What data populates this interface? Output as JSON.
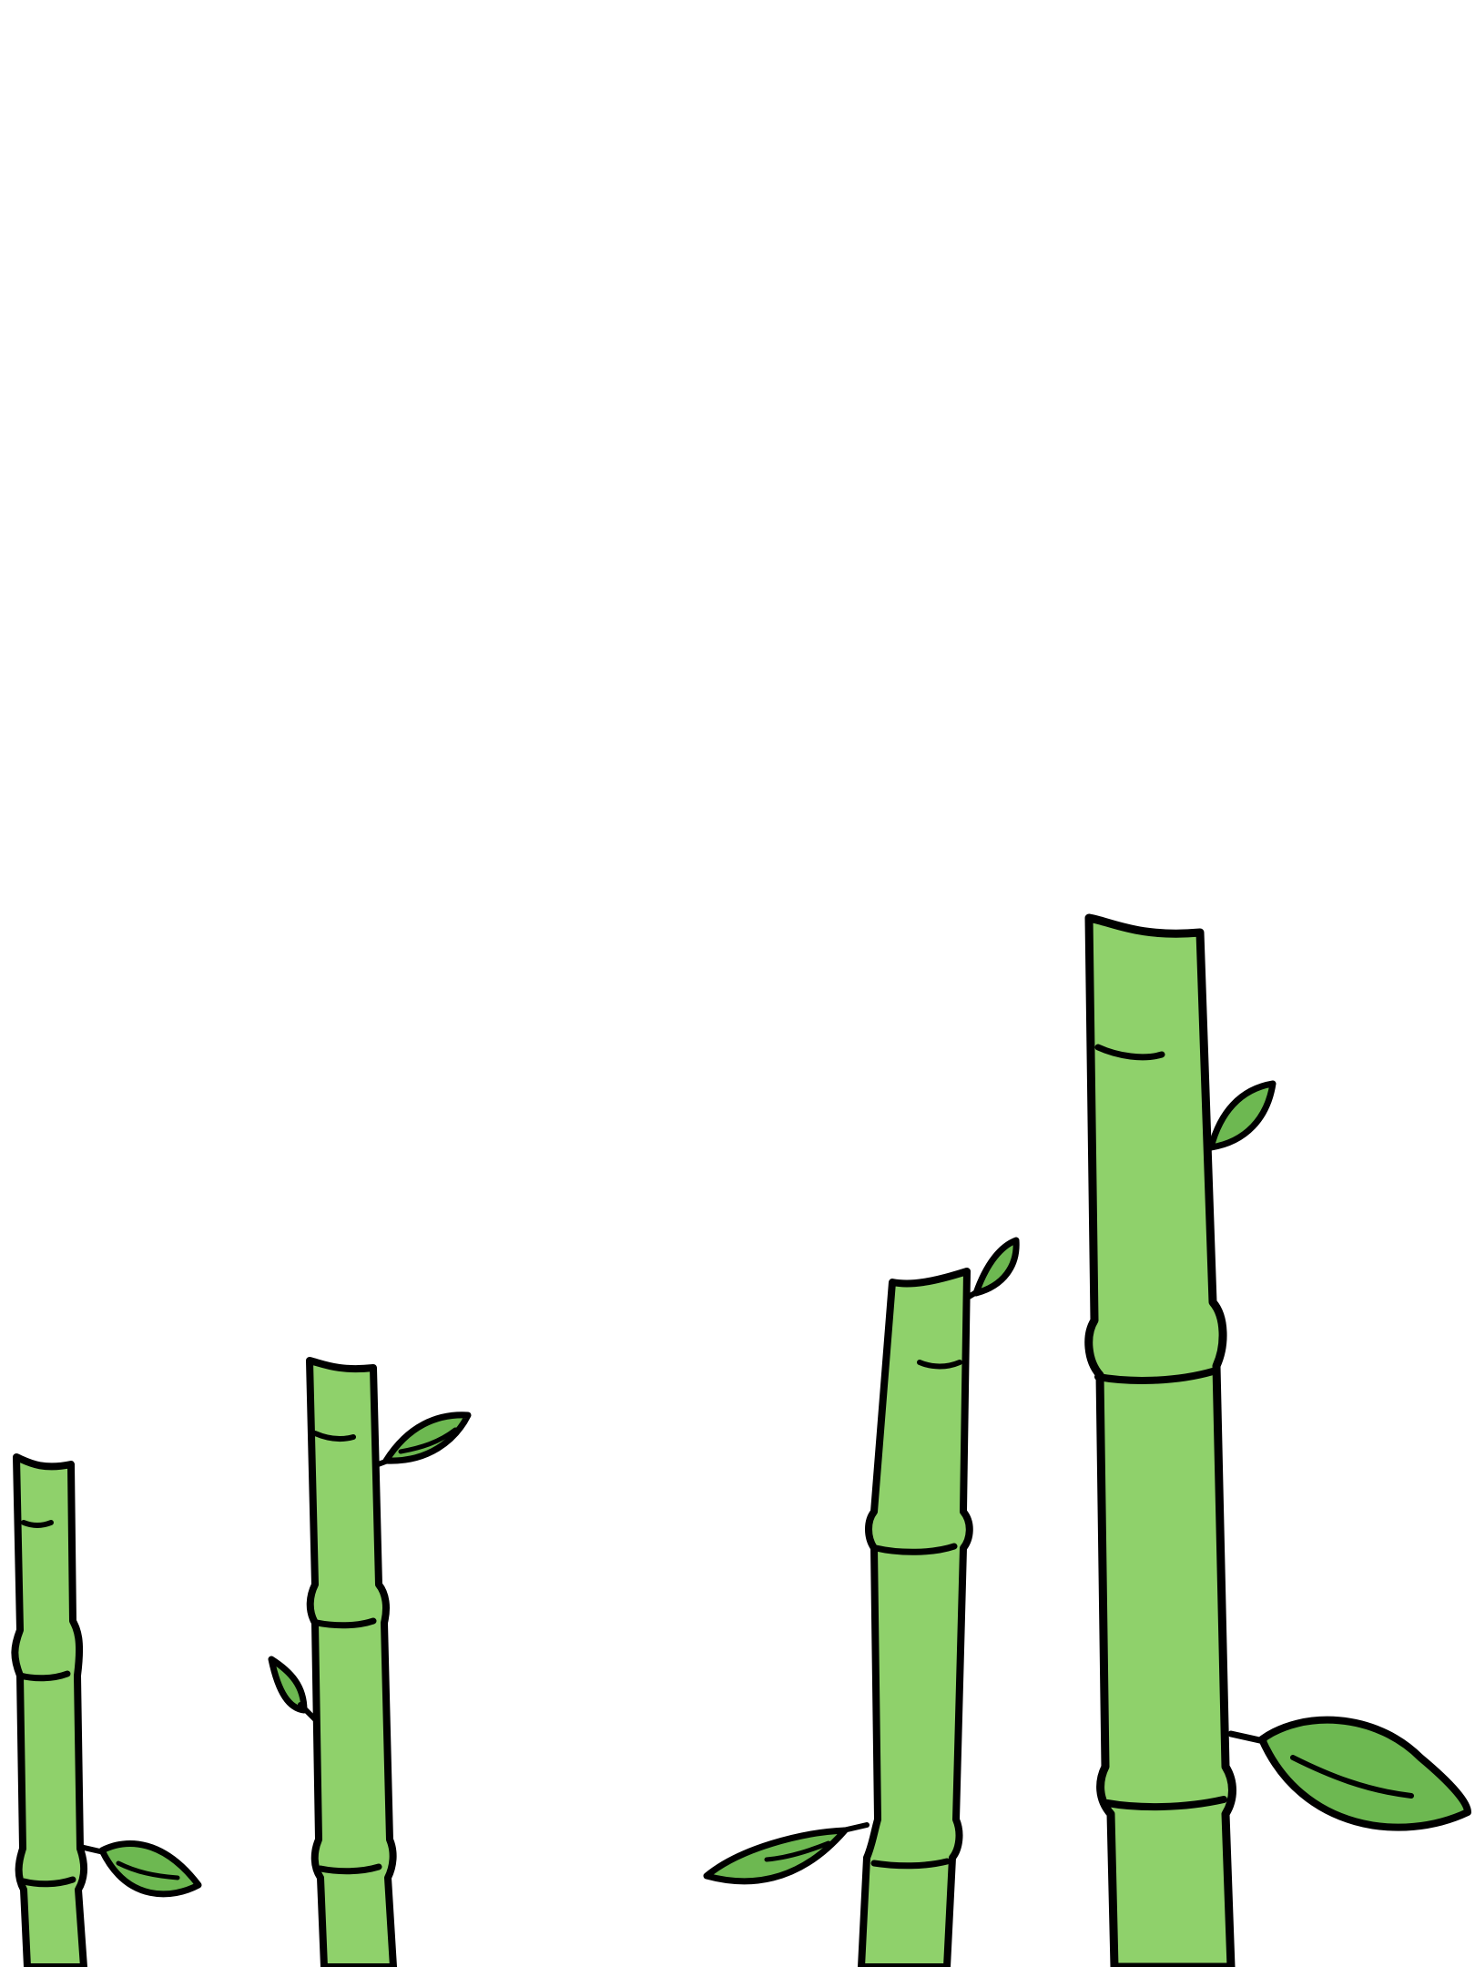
{
  "scene": {
    "description_kind": "illustration",
    "background_color": "#ffffff",
    "stalk_color": "#8fd16b",
    "leaf_color": "#6db851",
    "outline_color": "#000000",
    "stalks": [
      {
        "name": "stalk-1",
        "node_count": 2,
        "leaf_count": 1
      },
      {
        "name": "stalk-2",
        "node_count": 2,
        "leaf_count": 2
      },
      {
        "name": "stalk-3",
        "node_count": 2,
        "leaf_count": 2
      },
      {
        "name": "stalk-4",
        "node_count": 2,
        "leaf_count": 2
      }
    ]
  }
}
